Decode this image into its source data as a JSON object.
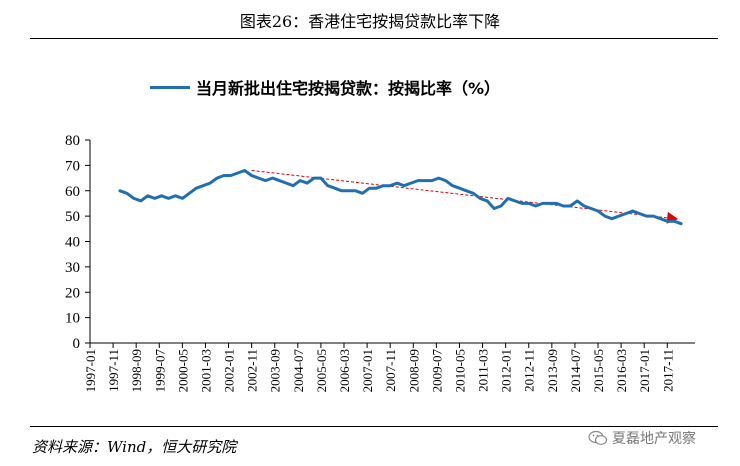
{
  "figure_title": "图表26：香港住宅按揭贷款比率下降",
  "source": "资料来源：Wind，恒大研究院",
  "watermark": "夏磊地产观察",
  "colors": {
    "series": "#1f6fb2",
    "trend": "#e00000",
    "axis": "#000000"
  },
  "icons": {
    "watermark": "wechat-icon",
    "trend_end": "arrow-head-icon"
  },
  "chart_data": {
    "type": "line",
    "title": "",
    "xlabel": "",
    "ylabel": "",
    "ylim": [
      0,
      80
    ],
    "yticks": [
      0,
      10,
      20,
      30,
      40,
      50,
      60,
      70,
      80
    ],
    "xlim": [
      "1997-01",
      "2018-11"
    ],
    "xticks": [
      "1997-01",
      "1997-11",
      "1998-09",
      "1999-07",
      "2000-05",
      "2001-03",
      "2002-01",
      "2002-11",
      "2003-09",
      "2004-07",
      "2005-05",
      "2006-03",
      "2007-01",
      "2007-11",
      "2008-09",
      "2009-07",
      "2010-05",
      "2011-03",
      "2012-01",
      "2012-11",
      "2013-09",
      "2014-07",
      "2015-05",
      "2016-03",
      "2017-01",
      "2017-11"
    ],
    "grid": false,
    "legend": "top-center",
    "series": [
      {
        "name": "当月新批出住宅按揭贷款：按揭比率（%）",
        "x": [
          "1998-02",
          "1998-05",
          "1998-08",
          "1998-11",
          "1999-02",
          "1999-05",
          "1999-08",
          "1999-11",
          "2000-02",
          "2000-05",
          "2000-08",
          "2000-11",
          "2001-02",
          "2001-05",
          "2001-08",
          "2001-11",
          "2002-02",
          "2002-05",
          "2002-08",
          "2002-11",
          "2003-02",
          "2003-05",
          "2003-08",
          "2003-11",
          "2004-02",
          "2004-05",
          "2004-08",
          "2004-11",
          "2005-02",
          "2005-05",
          "2005-08",
          "2005-11",
          "2006-02",
          "2006-05",
          "2006-08",
          "2006-11",
          "2007-02",
          "2007-05",
          "2007-08",
          "2007-11",
          "2008-02",
          "2008-05",
          "2008-08",
          "2008-11",
          "2009-02",
          "2009-05",
          "2009-08",
          "2009-11",
          "2010-02",
          "2010-05",
          "2010-08",
          "2010-11",
          "2011-02",
          "2011-05",
          "2011-08",
          "2011-11",
          "2012-02",
          "2012-05",
          "2012-08",
          "2012-11",
          "2013-02",
          "2013-05",
          "2013-08",
          "2013-11",
          "2014-02",
          "2014-05",
          "2014-08",
          "2014-11",
          "2015-02",
          "2015-05",
          "2015-08",
          "2015-11",
          "2016-02",
          "2016-05",
          "2016-08",
          "2016-11",
          "2017-02",
          "2017-05",
          "2017-08",
          "2017-11",
          "2018-02",
          "2018-05"
        ],
        "values": [
          60,
          59,
          57,
          56,
          58,
          57,
          58,
          57,
          58,
          57,
          59,
          61,
          62,
          63,
          65,
          66,
          66,
          67,
          68,
          66,
          65,
          64,
          65,
          64,
          63,
          62,
          64,
          63,
          65,
          65,
          62,
          61,
          60,
          60,
          60,
          59,
          61,
          61,
          62,
          62,
          63,
          62,
          63,
          64,
          64,
          64,
          65,
          64,
          62,
          61,
          60,
          59,
          57,
          56,
          53,
          54,
          57,
          56,
          55,
          55,
          54,
          55,
          55,
          55,
          54,
          54,
          56,
          54,
          53,
          52,
          50,
          49,
          50,
          51,
          52,
          51,
          50,
          50,
          49,
          48,
          48,
          47
        ]
      }
    ],
    "trend_line": {
      "x": [
        "2002-11",
        "2018-02"
      ],
      "values": [
        68,
        49
      ]
    }
  }
}
